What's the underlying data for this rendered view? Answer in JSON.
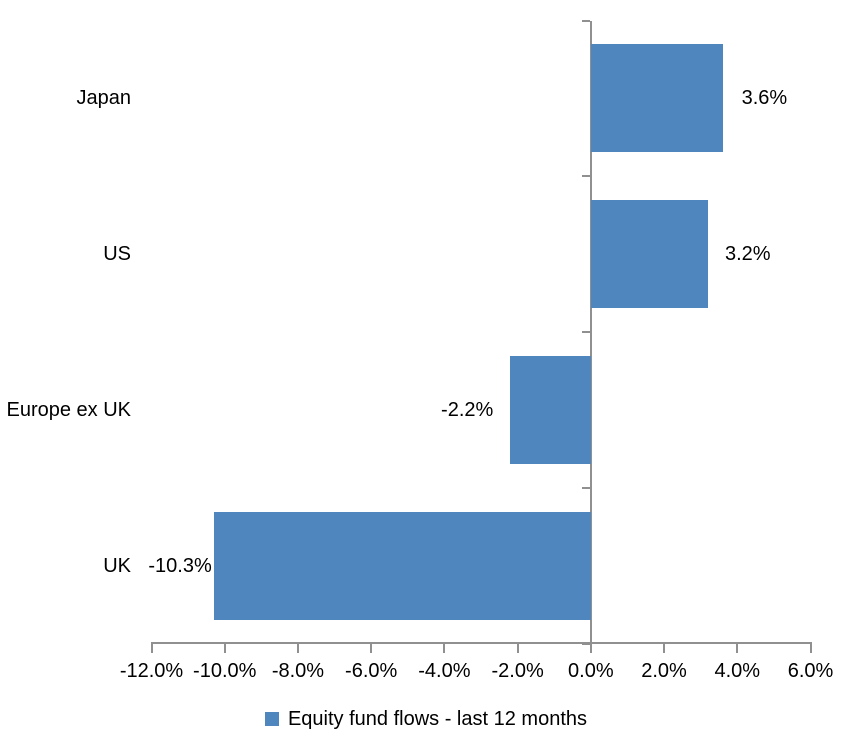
{
  "chart_data": {
    "type": "bar",
    "orientation": "horizontal",
    "title": "",
    "categories": [
      "Japan",
      "US",
      "Europe ex UK",
      "UK"
    ],
    "series": [
      {
        "name": "Equity fund flows - last 12 months",
        "values": [
          3.6,
          3.2,
          -2.2,
          -10.3
        ],
        "data_labels": [
          "3.6%",
          "3.2%",
          "-2.2%",
          "-10.3%"
        ],
        "color": "#4E86BD"
      }
    ],
    "xlabel": "",
    "ylabel": "",
    "xlim": [
      -12,
      6
    ],
    "x_tick_interval": 2,
    "x_tick_labels": [
      "-12.0%",
      "-10.0%",
      "-8.0%",
      "-6.0%",
      "-4.0%",
      "-2.0%",
      "0.0%",
      "2.0%",
      "4.0%",
      "6.0%"
    ],
    "grid": false,
    "legend_position": "bottom",
    "axis_color": "#909090",
    "text_color": "#000000",
    "background_color": "#FFFFFF"
  },
  "legend": {
    "items": [
      {
        "label": "Equity fund flows - last 12 months",
        "swatch_color": "#4E86BD"
      }
    ]
  }
}
